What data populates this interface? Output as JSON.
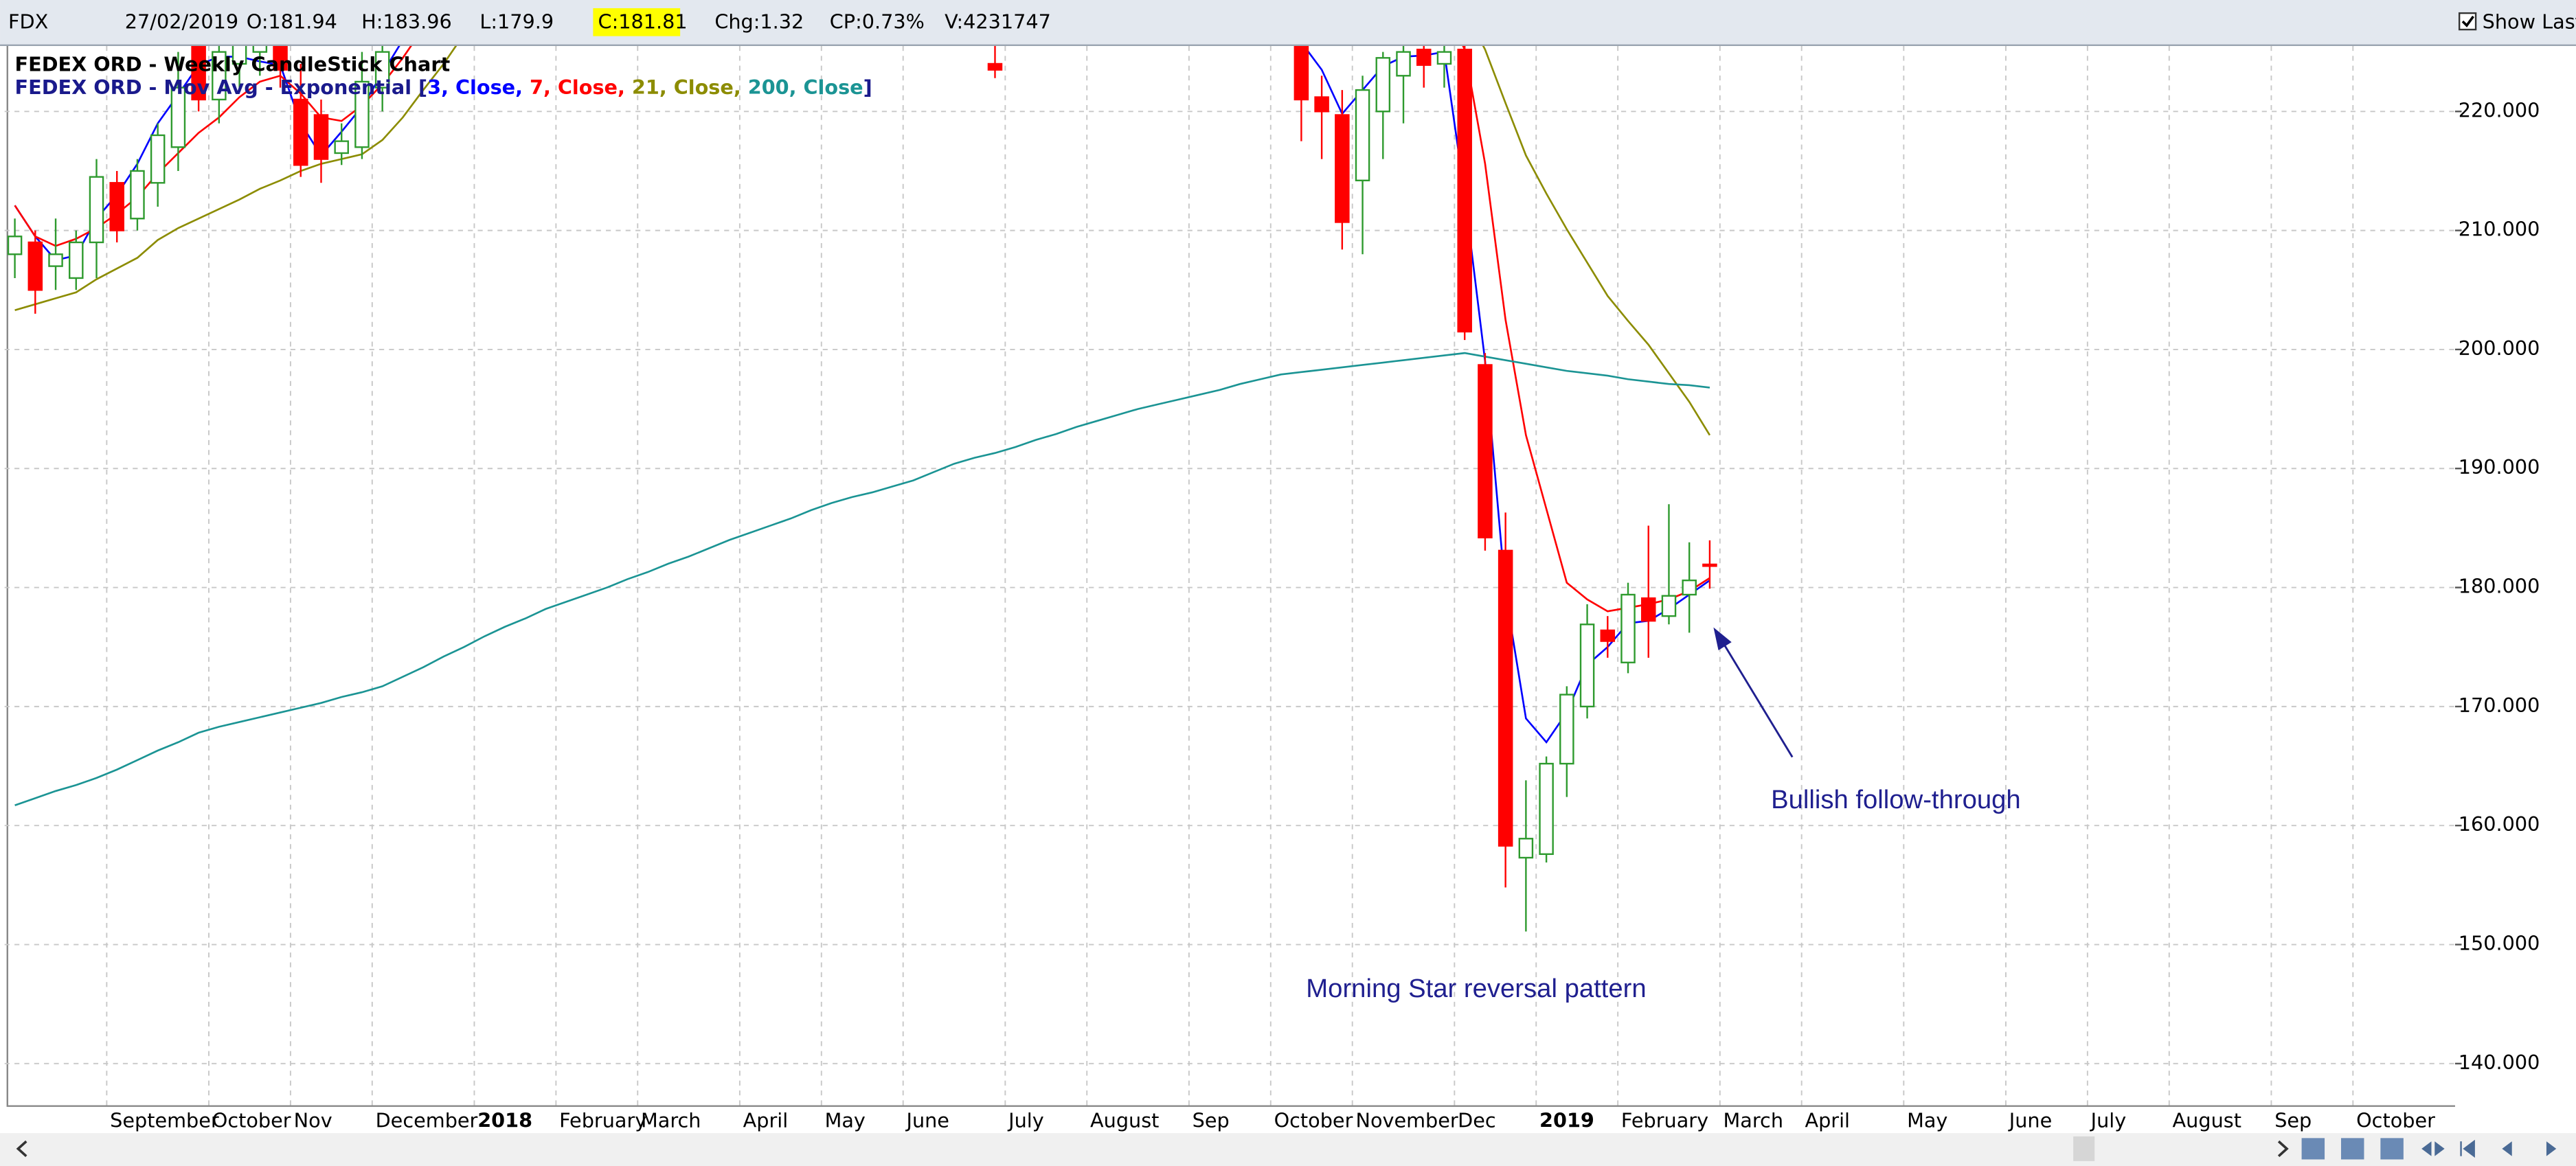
{
  "toolbar": {
    "symbol": "FDX",
    "date": "27/02/2019",
    "open": "O:181.94",
    "high": "H:183.96",
    "low": "L:179.9",
    "close": "C:181.81",
    "change": "Chg:1.32",
    "change_pct": "CP:0.73%",
    "volume": "V:4231747",
    "show_last": "Show Last"
  },
  "chart_data": {
    "type": "candlestick",
    "title": "FEDEX ORD - Weekly CandleStick Chart",
    "categories": [
      null,
      null,
      null,
      null,
      null,
      "September",
      null,
      null,
      null,
      null,
      "October",
      null,
      null,
      null,
      "Nov",
      null,
      null,
      null,
      "December",
      null,
      null,
      null,
      null,
      "2018",
      null,
      null,
      null,
      "February",
      null,
      null,
      null,
      "March",
      null,
      null,
      null,
      null,
      "April",
      null,
      null,
      null,
      "May",
      null,
      null,
      null,
      "June",
      null,
      null,
      null,
      null,
      "July",
      null,
      null,
      null,
      "August",
      null,
      null,
      null,
      null,
      "Sep",
      null,
      null,
      null,
      "October",
      null,
      null,
      null,
      "November",
      null,
      null,
      null,
      null,
      "Dec",
      null,
      null,
      null,
      "2019",
      null,
      null,
      null,
      "February",
      null,
      null,
      null,
      null,
      "March",
      null,
      null,
      null,
      "April",
      null,
      null,
      null,
      null,
      "May",
      null,
      null,
      null,
      null,
      "June",
      null,
      null,
      null,
      "July",
      null,
      null,
      null,
      "August",
      null,
      null,
      null,
      null,
      "Sep",
      null,
      null,
      null,
      "October",
      null,
      null,
      null,
      null
    ],
    "open": [
      208,
      209,
      207,
      206,
      209,
      214,
      211,
      214,
      217,
      226,
      221,
      224,
      225,
      226,
      221,
      219.7,
      216.5,
      217,
      222,
      null,
      null,
      null,
      null,
      null,
      null,
      null,
      null,
      null,
      null,
      null,
      null,
      null,
      null,
      null,
      null,
      null,
      null,
      null,
      null,
      null,
      null,
      null,
      null,
      null,
      null,
      null,
      null,
      null,
      224,
      null,
      null,
      null,
      null,
      null,
      null,
      null,
      null,
      null,
      null,
      null,
      null,
      null,
      null,
      225.5,
      221.2,
      219.7,
      214.2,
      220,
      223,
      225.2,
      224,
      225.2,
      198.7,
      183.1,
      157.3,
      157.6,
      165.2,
      170,
      176.4,
      173.7,
      179.1,
      177.6,
      179.4,
      181.94,
      null,
      null,
      null,
      null,
      null,
      null,
      null,
      null,
      null,
      null,
      null,
      null,
      null,
      null,
      null,
      null,
      null,
      null,
      null,
      null,
      null,
      null,
      null,
      null,
      null,
      null,
      null,
      null,
      null,
      null,
      null,
      null,
      null,
      null,
      null,
      null
    ],
    "high": [
      211,
      210,
      211,
      210,
      216,
      215,
      216,
      219,
      225,
      227,
      226,
      228,
      229,
      227,
      224,
      221,
      219,
      225,
      227,
      null,
      null,
      null,
      null,
      null,
      null,
      null,
      null,
      null,
      null,
      null,
      null,
      null,
      null,
      null,
      null,
      null,
      null,
      null,
      null,
      null,
      null,
      null,
      null,
      null,
      null,
      null,
      null,
      null,
      226,
      null,
      null,
      null,
      null,
      null,
      null,
      null,
      null,
      null,
      null,
      null,
      null,
      null,
      null,
      228,
      223,
      221.8,
      223,
      225,
      226,
      226,
      226,
      226,
      199.7,
      186.3,
      163.8,
      165.8,
      171.7,
      178.6,
      177.6,
      180.4,
      185.2,
      187,
      183.8,
      183.96,
      null,
      null,
      null,
      null,
      null,
      null,
      null,
      null,
      null,
      null,
      null,
      null,
      null,
      null,
      null,
      null,
      null,
      null,
      null,
      null,
      null,
      null,
      null,
      null,
      null,
      null,
      null,
      null,
      null,
      null,
      null,
      null,
      null,
      null,
      null,
      null
    ],
    "low": [
      206,
      203,
      205,
      205,
      206,
      209,
      210,
      212,
      215,
      220,
      219,
      222,
      223,
      222,
      214.5,
      214,
      215.5,
      216,
      220,
      null,
      null,
      null,
      null,
      null,
      null,
      null,
      null,
      null,
      null,
      null,
      null,
      null,
      null,
      null,
      null,
      null,
      null,
      null,
      null,
      null,
      null,
      null,
      null,
      null,
      null,
      null,
      null,
      null,
      222.8,
      null,
      null,
      null,
      null,
      null,
      null,
      null,
      null,
      null,
      null,
      null,
      null,
      null,
      null,
      217.5,
      216,
      208.4,
      208,
      216,
      219,
      222,
      222,
      200.8,
      183.1,
      154.8,
      151.1,
      156.9,
      162.4,
      169,
      174.1,
      172.8,
      174.1,
      176.9,
      176.2,
      179.9,
      null,
      null,
      null,
      null,
      null,
      null,
      null,
      null,
      null,
      null,
      null,
      null,
      null,
      null,
      null,
      null,
      null,
      null,
      null,
      null,
      null,
      null,
      null,
      null,
      null,
      null,
      null,
      null,
      null,
      null,
      null,
      null,
      null,
      null,
      null,
      null
    ],
    "close": [
      209.5,
      205,
      208,
      209,
      214.5,
      210,
      215,
      218,
      222,
      221,
      225,
      226,
      227,
      223.5,
      215.5,
      216,
      217.5,
      222.5,
      225,
      null,
      null,
      null,
      null,
      null,
      null,
      null,
      null,
      null,
      null,
      null,
      null,
      null,
      null,
      null,
      null,
      null,
      null,
      null,
      null,
      null,
      null,
      null,
      null,
      null,
      null,
      null,
      null,
      null,
      223.5,
      null,
      null,
      null,
      null,
      null,
      null,
      null,
      null,
      null,
      null,
      null,
      null,
      null,
      null,
      221,
      220,
      210.7,
      221.8,
      224.5,
      225,
      223.9,
      225,
      201.5,
      184.2,
      158.3,
      158.9,
      165.2,
      171,
      176.9,
      175.5,
      179.4,
      177.2,
      179.3,
      180.6,
      181.81,
      null,
      null,
      null,
      null,
      null,
      null,
      null,
      null,
      null,
      null,
      null,
      null,
      null,
      null,
      null,
      null,
      null,
      null,
      null,
      null,
      null,
      null,
      null,
      null,
      null,
      null,
      null,
      null,
      null,
      null,
      null,
      null,
      null,
      null,
      null,
      null
    ],
    "up_color": "#2e9a2e",
    "down_color": "#ff0000",
    "ylim": [
      136.5,
      225.5
    ],
    "yticks": [
      {
        "value": 140,
        "label": "140.000"
      },
      {
        "value": 150,
        "label": "150.000"
      },
      {
        "value": 160,
        "label": "160.000"
      },
      {
        "value": 170,
        "label": "170.000"
      },
      {
        "value": 180,
        "label": "180.000"
      },
      {
        "value": 190,
        "label": "190.000"
      },
      {
        "value": 200,
        "label": "200.000"
      },
      {
        "value": 210,
        "label": "210.000"
      },
      {
        "value": 220,
        "label": "220.000"
      }
    ],
    "grid": true,
    "ma_label": "FEDEX ORD - Mov Avg - Exponential [",
    "ma_separator": ", ",
    "ma_close": "]",
    "series": [
      {
        "name": "3, Close",
        "color": "#0000ff",
        "values": [
          212.1,
          209.5,
          207.5,
          207.9,
          211.0,
          213.0,
          215.6,
          219.0,
          221.4,
          223.9,
          224.6,
          224.6,
          224.2,
          223.9,
          219.0,
          216.3,
          218.3,
          220.4,
          223.2,
          226,
          null,
          null,
          null,
          null,
          null,
          null,
          null,
          null,
          null,
          null,
          null,
          null,
          null,
          null,
          null,
          null,
          null,
          null,
          null,
          null,
          null,
          null,
          null,
          null,
          null,
          null,
          null,
          null,
          null,
          null,
          null,
          null,
          null,
          null,
          null,
          null,
          null,
          null,
          null,
          null,
          null,
          null,
          null,
          225.8,
          223.5,
          219.8,
          221.8,
          223.8,
          224.6,
          224.7,
          225.0,
          213,
          199,
          179.5,
          169,
          167,
          169.5,
          173.5,
          175,
          177,
          177.2,
          178.2,
          179.4,
          180.6,
          null,
          null,
          null,
          null,
          null,
          null,
          null,
          null,
          null,
          null,
          null,
          null,
          null,
          null,
          null,
          null,
          null,
          null,
          null,
          null,
          null,
          null,
          null,
          null,
          null,
          null,
          null,
          null,
          null,
          null,
          null,
          null,
          null,
          null,
          null,
          null
        ]
      },
      {
        "name": "7, Close",
        "color": "#ff0000",
        "values": [
          212.1,
          209.5,
          208.7,
          209.3,
          210.2,
          211.4,
          212.8,
          214.8,
          216.5,
          218.2,
          219.5,
          221.2,
          222.5,
          223.0,
          221.5,
          219.5,
          219.2,
          220.5,
          222.3,
          224.5,
          227,
          null,
          null,
          null,
          null,
          null,
          null,
          null,
          null,
          null,
          null,
          null,
          null,
          null,
          null,
          null,
          null,
          null,
          null,
          null,
          null,
          null,
          null,
          null,
          null,
          null,
          null,
          null,
          null,
          null,
          null,
          null,
          null,
          null,
          null,
          null,
          null,
          null,
          null,
          null,
          null,
          null,
          null,
          null,
          null,
          null,
          null,
          null,
          null,
          null,
          229,
          225.2,
          215.6,
          202.5,
          192.8,
          186.6,
          180.4,
          179.0,
          178.0,
          178.3,
          178.6,
          179.0,
          179.7,
          180.8,
          null,
          null,
          null,
          null,
          null,
          null,
          null,
          null,
          null,
          null,
          null,
          null,
          null,
          null,
          null,
          null,
          null,
          null,
          null,
          null,
          null,
          null,
          null,
          null,
          null,
          null,
          null,
          null,
          null,
          null,
          null,
          null,
          null,
          null,
          null,
          null
        ]
      },
      {
        "name": "21, Close",
        "color": "#8c8c00",
        "values": [
          203.3,
          203.8,
          204.3,
          204.8,
          205.9,
          206.8,
          207.7,
          209.2,
          210.2,
          211.0,
          211.8,
          212.6,
          213.5,
          214.2,
          215.0,
          215.6,
          216.0,
          216.4,
          217.6,
          219.5,
          221.8,
          224,
          226.5,
          null,
          null,
          null,
          null,
          null,
          null,
          null,
          null,
          null,
          null,
          null,
          null,
          null,
          null,
          null,
          null,
          null,
          null,
          null,
          null,
          null,
          null,
          null,
          null,
          null,
          null,
          null,
          null,
          null,
          null,
          null,
          null,
          null,
          null,
          null,
          null,
          null,
          null,
          null,
          null,
          null,
          null,
          null,
          null,
          null,
          null,
          null,
          null,
          228.5,
          225.2,
          220.7,
          216.3,
          213.1,
          210.1,
          207.3,
          204.5,
          202.4,
          200.4,
          198.0,
          195.6,
          192.8,
          null,
          null,
          null,
          null,
          null,
          null,
          null,
          null,
          null,
          null,
          null,
          null,
          null,
          null,
          null,
          null,
          null,
          null,
          null,
          null,
          null,
          null,
          null,
          null,
          null,
          null,
          null,
          null,
          null,
          null,
          null,
          null,
          null,
          null,
          null,
          null
        ]
      },
      {
        "name": "200, Close",
        "color": "#1b9494",
        "values": [
          161.7,
          162.3,
          162.9,
          163.4,
          164.0,
          164.7,
          165.5,
          166.3,
          167.0,
          167.8,
          168.3,
          168.7,
          169.1,
          169.5,
          169.9,
          170.3,
          170.8,
          171.2,
          171.7,
          172.5,
          173.3,
          174.2,
          175.0,
          175.9,
          176.7,
          177.4,
          178.2,
          178.8,
          179.4,
          180.0,
          180.7,
          181.3,
          182.0,
          182.6,
          183.3,
          184.0,
          184.6,
          185.2,
          185.8,
          186.5,
          187.1,
          187.6,
          188.0,
          188.5,
          189.0,
          189.7,
          190.4,
          190.9,
          191.3,
          191.8,
          192.4,
          192.9,
          193.5,
          194.0,
          194.5,
          195.0,
          195.4,
          195.8,
          196.2,
          196.6,
          197.1,
          197.5,
          197.9,
          198.1,
          198.3,
          198.5,
          198.7,
          198.9,
          199.1,
          199.3,
          199.5,
          199.7,
          199.4,
          199.1,
          198.8,
          198.5,
          198.2,
          198.0,
          197.8,
          197.5,
          197.3,
          197.1,
          197.0,
          196.8,
          null,
          null,
          null,
          null,
          null,
          null,
          null,
          null,
          null,
          null,
          null,
          null,
          null,
          null,
          null,
          null,
          null,
          null,
          null,
          null,
          null,
          null,
          null,
          null,
          null,
          null,
          null,
          null,
          null,
          null,
          null,
          null,
          null,
          null,
          null,
          null
        ]
      }
    ],
    "annotations": [
      {
        "text": "Morning Star reversal pattern"
      },
      {
        "text": "Bullish follow-through"
      }
    ]
  }
}
